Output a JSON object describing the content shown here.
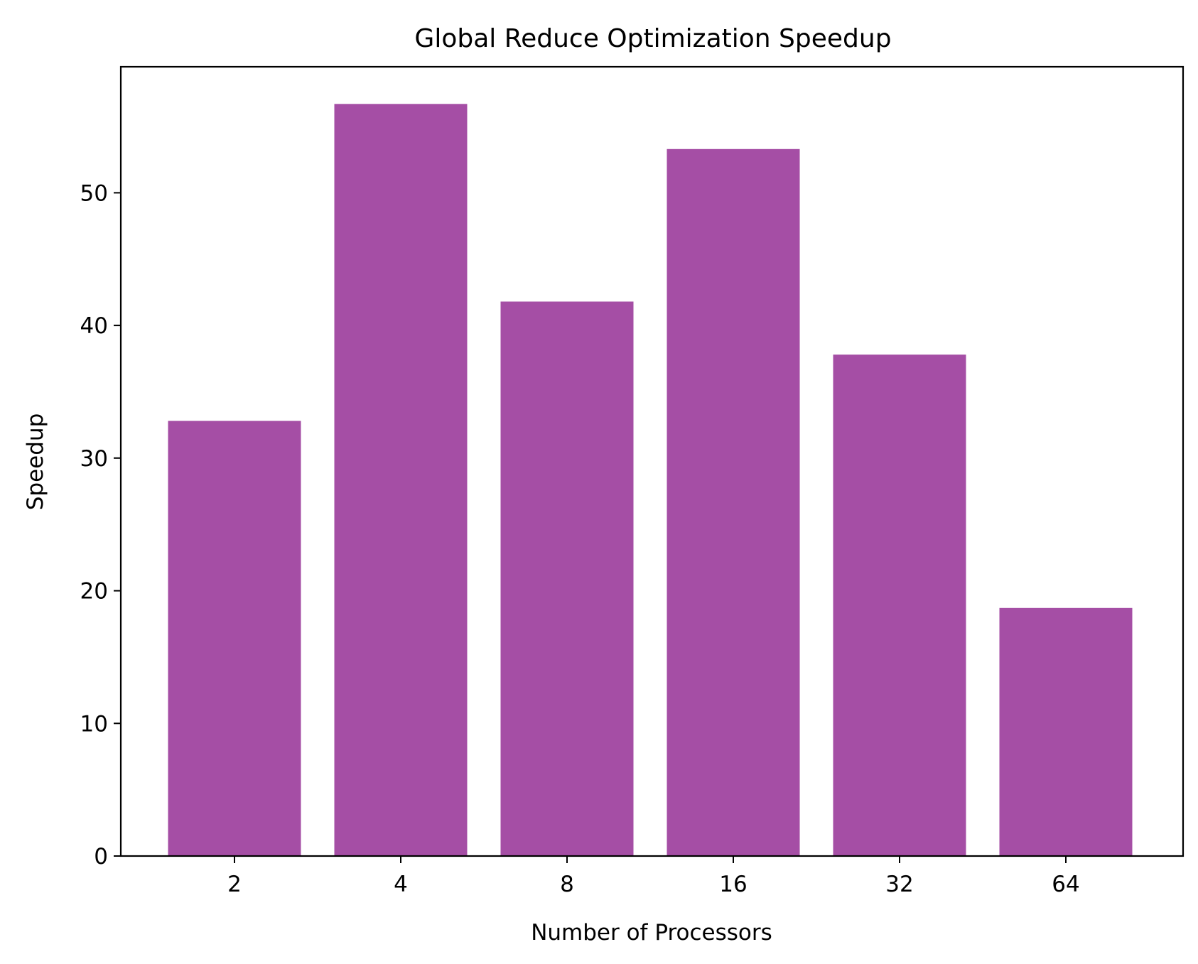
{
  "chart_data": {
    "type": "bar",
    "title": "Global Reduce Optimization Speedup",
    "xlabel": "Number of Processors",
    "ylabel": "Speedup",
    "categories": [
      "2",
      "4",
      "8",
      "16",
      "32",
      "64"
    ],
    "values": [
      32.8,
      56.7,
      41.8,
      53.3,
      37.8,
      18.7
    ],
    "ylim": [
      0,
      59.5
    ],
    "yticks": [
      0,
      10,
      20,
      30,
      40,
      50
    ],
    "bar_color": "#a54ea5",
    "grid": false,
    "legend": null
  }
}
